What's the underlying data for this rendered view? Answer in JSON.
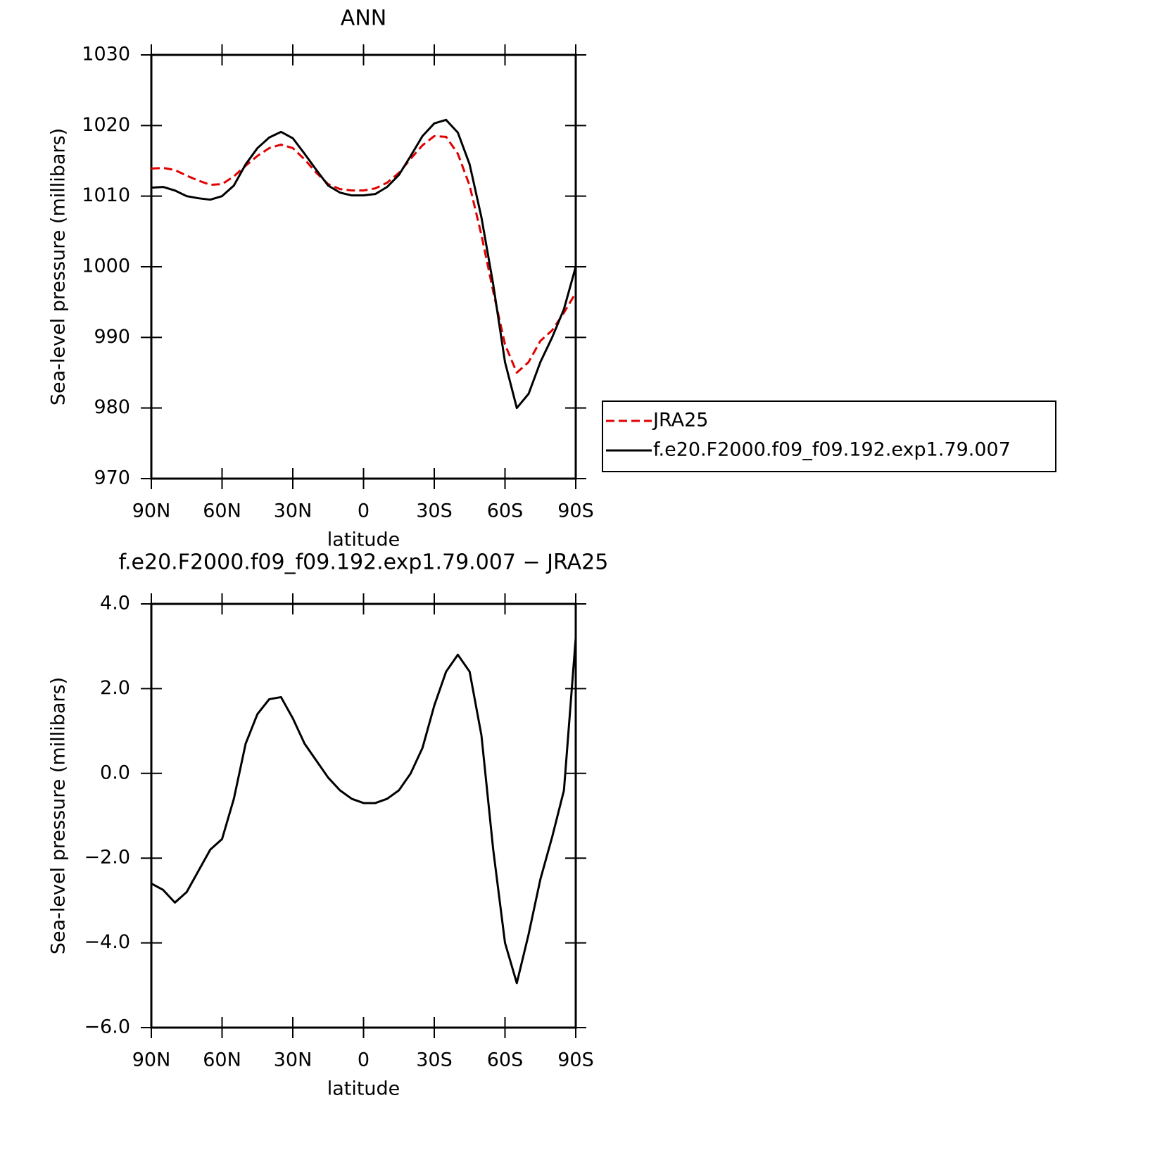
{
  "chart_data": [
    {
      "type": "line",
      "title": "ANN",
      "xlabel": "latitude",
      "ylabel": "Sea-level pressure (millibars)",
      "x": [
        90,
        85,
        80,
        75,
        70,
        65,
        60,
        55,
        50,
        45,
        40,
        35,
        30,
        25,
        20,
        15,
        10,
        5,
        0,
        -5,
        -10,
        -15,
        -20,
        -25,
        -30,
        -35,
        -40,
        -45,
        -50,
        -55,
        -60,
        -65,
        -70,
        -75,
        -80,
        -85,
        -90
      ],
      "xlim": [
        90,
        -90
      ],
      "xticks": [
        {
          "value": 90,
          "label": "90N"
        },
        {
          "value": 60,
          "label": "60N"
        },
        {
          "value": 30,
          "label": "30N"
        },
        0,
        {
          "value": -30,
          "label": "30S"
        },
        {
          "value": -60,
          "label": "60S"
        },
        {
          "value": -90,
          "label": "90S"
        }
      ],
      "ylim": [
        970,
        1030
      ],
      "yticks": [
        970,
        980,
        990,
        1000,
        1010,
        1020,
        1030
      ],
      "series": [
        {
          "name": "JRA25",
          "color": "#e00000",
          "dashed": true,
          "values": [
            1013.9,
            1014.0,
            1013.7,
            1012.9,
            1012.2,
            1011.6,
            1011.7,
            1012.8,
            1014.3,
            1015.7,
            1016.8,
            1017.3,
            1016.8,
            1015.2,
            1013.3,
            1011.7,
            1011.0,
            1010.8,
            1010.8,
            1011.1,
            1011.9,
            1013.3,
            1015.3,
            1017.2,
            1018.5,
            1018.4,
            1016.0,
            1011.5,
            1004.5,
            996.5,
            989.0,
            985.0,
            986.5,
            989.5,
            991.0,
            993.5,
            996.3
          ]
        },
        {
          "name": "f.e20.F2000.f09_f09.192.exp1.79.007",
          "color": "#000000",
          "dashed": false,
          "values": [
            1011.2,
            1011.3,
            1010.8,
            1010.0,
            1009.7,
            1009.5,
            1010.0,
            1011.5,
            1014.5,
            1016.8,
            1018.3,
            1019.1,
            1018.2,
            1016.0,
            1013.7,
            1011.5,
            1010.5,
            1010.1,
            1010.1,
            1010.3,
            1011.3,
            1013.0,
            1015.7,
            1018.5,
            1020.3,
            1020.8,
            1019.0,
            1014.5,
            1007.0,
            997.5,
            986.5,
            980.0,
            982.0,
            986.5,
            990.0,
            994.0,
            1000.0
          ]
        }
      ]
    },
    {
      "type": "line",
      "title": "f.e20.F2000.f09_f09.192.exp1.79.007 − JRA25",
      "xlabel": "latitude",
      "ylabel": "Sea-level pressure (millibars)",
      "x": [
        90,
        85,
        80,
        75,
        70,
        65,
        60,
        55,
        50,
        45,
        40,
        35,
        30,
        25,
        20,
        15,
        10,
        5,
        0,
        -5,
        -10,
        -15,
        -20,
        -25,
        -30,
        -35,
        -40,
        -45,
        -50,
        -55,
        -60,
        -65,
        -70,
        -75,
        -80,
        -85,
        -90
      ],
      "xlim": [
        90,
        -90
      ],
      "xticks": [
        {
          "value": 90,
          "label": "90N"
        },
        {
          "value": 60,
          "label": "60N"
        },
        {
          "value": 30,
          "label": "30N"
        },
        0,
        {
          "value": -30,
          "label": "30S"
        },
        {
          "value": -60,
          "label": "60S"
        },
        {
          "value": -90,
          "label": "90S"
        }
      ],
      "ylim": [
        -6,
        4
      ],
      "yticks": [
        {
          "value": -6,
          "label": "−6.0"
        },
        {
          "value": -4,
          "label": "−4.0"
        },
        {
          "value": -2,
          "label": "−2.0"
        },
        {
          "value": 0,
          "label": "0.0"
        },
        {
          "value": 2,
          "label": "2.0"
        },
        {
          "value": 4,
          "label": "4.0"
        }
      ],
      "series": [
        {
          "color": "#000000",
          "dashed": false,
          "values": [
            -2.6,
            -2.75,
            -3.05,
            -2.8,
            -2.3,
            -1.8,
            -1.55,
            -0.6,
            0.7,
            1.4,
            1.75,
            1.8,
            1.3,
            0.7,
            0.3,
            -0.1,
            -0.4,
            -0.6,
            -0.7,
            -0.7,
            -0.6,
            -0.4,
            0.0,
            0.6,
            1.6,
            2.4,
            2.8,
            2.4,
            0.9,
            -1.8,
            -4.0,
            -4.95,
            -3.8,
            -2.5,
            -1.5,
            -0.4,
            3.2
          ]
        }
      ]
    }
  ]
}
